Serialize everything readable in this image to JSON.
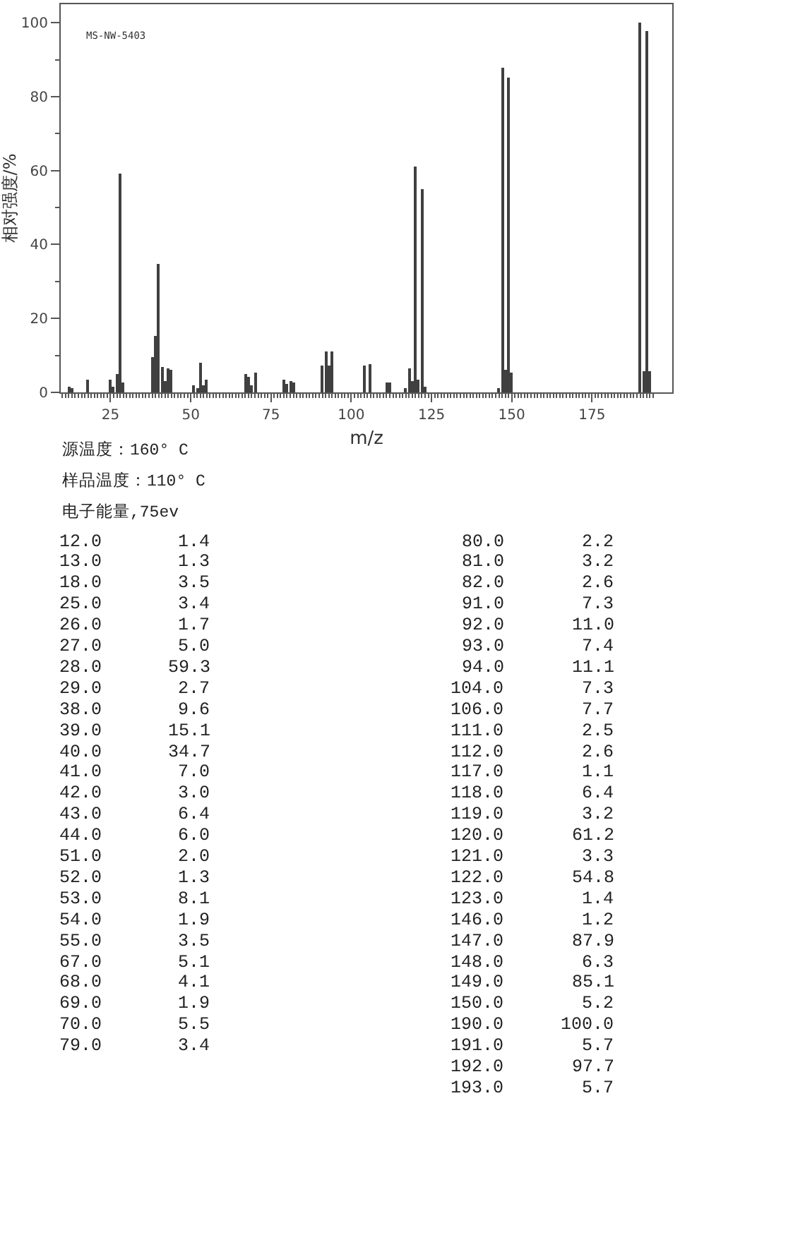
{
  "chart_data": {
    "type": "bar",
    "title": "MS-NW-5403",
    "xlabel": "m/z",
    "ylabel": "相对强度/%",
    "annotations": [
      "源温度：160° C",
      "样品温度：110° C",
      "电子能量,75ev",
      "12.0",
      "1.4",
      "13.0",
      "1.3",
      "18.0",
      "3.5",
      "25.0",
      "3.4",
      "26.0",
      "1.7",
      "27.0",
      "5.0",
      "28.0",
      "59.3",
      "29.0",
      "2.7",
      "38.0",
      "9.6",
      "39.0",
      "15.1",
      "40.0",
      "34.7",
      "41.0",
      "7.0",
      "42.0",
      "3.0",
      "43.0",
      "6.4",
      "44.0",
      "6.0",
      "51.0",
      "2.0",
      "52.0",
      "1.3",
      "53.0",
      "8.1",
      "54.0",
      "1.9",
      "55.0",
      "3.5",
      "67.0",
      "5.1",
      "68.0",
      "4.1",
      "69.0",
      "1.9",
      "70.0",
      "5.5",
      "79.0",
      "3.4",
      "80.0",
      "2.2",
      "81.0",
      "3.2",
      "82.0",
      "2.6",
      "91.0",
      "7.3",
      "92.0",
      "11.0",
      "93.0",
      "7.4",
      "94.0",
      "11.1",
      "104.0",
      "7.3",
      "106.0",
      "7.7",
      "111.0",
      "2.5",
      "112.0",
      "2.6",
      "117.0",
      "1.1",
      "118.0",
      "6.4",
      "119.0",
      "3.2",
      "120.0",
      "61.2",
      "121.0",
      "3.3",
      "122.0",
      "54.8",
      "123.0",
      "1.4",
      "146.0",
      "1.2",
      "147.0",
      "87.9",
      "148.0",
      "6.3",
      "149.0",
      "85.1",
      "150.0",
      "5.2",
      "190.0",
      "100.0",
      "191.0",
      "5.7",
      "192.0",
      "97.7",
      "193.0",
      "5.7"
    ],
    "x": [
      12,
      13,
      18,
      25,
      26,
      27,
      28,
      29,
      38,
      39,
      40,
      41,
      42,
      43,
      44,
      51,
      52,
      53,
      54,
      55,
      67,
      68,
      69,
      70,
      79,
      80,
      81,
      82,
      91,
      92,
      93,
      94,
      104,
      106,
      111,
      112,
      117,
      118,
      119,
      120,
      121,
      122,
      123,
      146,
      147,
      148,
      149,
      150,
      190,
      191,
      192,
      193
    ],
    "values": [
      1.4,
      1.3,
      3.5,
      3.4,
      1.7,
      5.0,
      59.3,
      2.7,
      9.6,
      15.1,
      34.7,
      7.0,
      3.0,
      6.4,
      6.0,
      2.0,
      1.3,
      8.1,
      1.9,
      3.5,
      5.1,
      4.1,
      1.9,
      5.5,
      3.4,
      2.2,
      3.2,
      2.6,
      7.3,
      11.0,
      7.4,
      11.1,
      7.3,
      7.7,
      2.5,
      2.6,
      1.1,
      6.4,
      3.2,
      61.2,
      3.3,
      54.8,
      1.4,
      1.2,
      87.9,
      6.3,
      85.1,
      5.2,
      100.0,
      5.7,
      97.7,
      5.7
    ],
    "color": "#404040",
    "xlim": [
      9.5,
      200
    ],
    "xticks": [
      {
        "value": 10,
        "label": null
      },
      {
        "value": 11,
        "label": null
      },
      {
        "value": 12,
        "label": null
      },
      {
        "value": 13,
        "label": null
      },
      {
        "value": 14,
        "label": null
      },
      {
        "value": 15,
        "label": null
      },
      {
        "value": 16,
        "label": null
      },
      {
        "value": 17,
        "label": null
      },
      {
        "value": 18,
        "label": null
      },
      {
        "value": 19,
        "label": null
      },
      {
        "value": 20,
        "label": null
      },
      {
        "value": 21,
        "label": null
      },
      {
        "value": 22,
        "label": null
      },
      {
        "value": 23,
        "label": null
      },
      {
        "value": 24,
        "label": null
      },
      25,
      {
        "value": 26,
        "label": null
      },
      {
        "value": 27,
        "label": null
      },
      {
        "value": 28,
        "label": null
      },
      {
        "value": 29,
        "label": null
      },
      {
        "value": 30,
        "label": null
      },
      {
        "value": 31,
        "label": null
      },
      {
        "value": 32,
        "label": null
      },
      {
        "value": 33,
        "label": null
      },
      {
        "value": 34,
        "label": null
      },
      {
        "value": 35,
        "label": null
      },
      {
        "value": 36,
        "label": null
      },
      {
        "value": 37,
        "label": null
      },
      {
        "value": 38,
        "label": null
      },
      {
        "value": 39,
        "label": null
      },
      {
        "value": 40,
        "label": null
      },
      {
        "value": 41,
        "label": null
      },
      {
        "value": 42,
        "label": null
      },
      {
        "value": 43,
        "label": null
      },
      {
        "value": 44,
        "label": null
      },
      {
        "value": 45,
        "label": null
      },
      {
        "value": 46,
        "label": null
      },
      {
        "value": 47,
        "label": null
      },
      {
        "value": 48,
        "label": null
      },
      {
        "value": 49,
        "label": null
      },
      50,
      {
        "value": 51,
        "label": null
      },
      {
        "value": 52,
        "label": null
      },
      {
        "value": 53,
        "label": null
      },
      {
        "value": 54,
        "label": null
      },
      {
        "value": 55,
        "label": null
      },
      {
        "value": 56,
        "label": null
      },
      {
        "value": 57,
        "label": null
      },
      {
        "value": 58,
        "label": null
      },
      {
        "value": 59,
        "label": null
      },
      {
        "value": 60,
        "label": null
      },
      {
        "value": 61,
        "label": null
      },
      {
        "value": 62,
        "label": null
      },
      {
        "value": 63,
        "label": null
      },
      {
        "value": 64,
        "label": null
      },
      {
        "value": 65,
        "label": null
      },
      {
        "value": 66,
        "label": null
      },
      {
        "value": 67,
        "label": null
      },
      {
        "value": 68,
        "label": null
      },
      {
        "value": 69,
        "label": null
      },
      {
        "value": 70,
        "label": null
      },
      {
        "value": 71,
        "label": null
      },
      {
        "value": 72,
        "label": null
      },
      {
        "value": 73,
        "label": null
      },
      {
        "value": 74,
        "label": null
      },
      75,
      {
        "value": 76,
        "label": null
      },
      {
        "value": 77,
        "label": null
      },
      {
        "value": 78,
        "label": null
      },
      {
        "value": 79,
        "label": null
      },
      {
        "value": 80,
        "label": null
      },
      {
        "value": 81,
        "label": null
      },
      {
        "value": 82,
        "label": null
      },
      {
        "value": 83,
        "label": null
      },
      {
        "value": 84,
        "label": null
      },
      {
        "value": 85,
        "label": null
      },
      {
        "value": 86,
        "label": null
      },
      {
        "value": 87,
        "label": null
      },
      {
        "value": 88,
        "label": null
      },
      {
        "value": 89,
        "label": null
      },
      {
        "value": 90,
        "label": null
      },
      {
        "value": 91,
        "label": null
      },
      {
        "value": 92,
        "label": null
      },
      {
        "value": 93,
        "label": null
      },
      {
        "value": 94,
        "label": null
      },
      {
        "value": 95,
        "label": null
      },
      {
        "value": 96,
        "label": null
      },
      {
        "value": 97,
        "label": null
      },
      {
        "value": 98,
        "label": null
      },
      {
        "value": 99,
        "label": null
      },
      100,
      {
        "value": 101,
        "label": null
      },
      {
        "value": 102,
        "label": null
      },
      {
        "value": 103,
        "label": null
      },
      {
        "value": 104,
        "label": null
      },
      {
        "value": 105,
        "label": null
      },
      {
        "value": 106,
        "label": null
      },
      {
        "value": 107,
        "label": null
      },
      {
        "value": 108,
        "label": null
      },
      {
        "value": 109,
        "label": null
      },
      {
        "value": 110,
        "label": null
      },
      {
        "value": 111,
        "label": null
      },
      {
        "value": 112,
        "label": null
      },
      {
        "value": 113,
        "label": null
      },
      {
        "value": 114,
        "label": null
      },
      {
        "value": 115,
        "label": null
      },
      {
        "value": 116,
        "label": null
      },
      {
        "value": 117,
        "label": null
      },
      {
        "value": 118,
        "label": null
      },
      {
        "value": 119,
        "label": null
      },
      {
        "value": 120,
        "label": null
      },
      {
        "value": 121,
        "label": null
      },
      {
        "value": 122,
        "label": null
      },
      {
        "value": 123,
        "label": null
      },
      {
        "value": 124,
        "label": null
      },
      125,
      {
        "value": 126,
        "label": null
      },
      {
        "value": 127,
        "label": null
      },
      {
        "value": 128,
        "label": null
      },
      {
        "value": 129,
        "label": null
      },
      {
        "value": 130,
        "label": null
      },
      {
        "value": 131,
        "label": null
      },
      {
        "value": 132,
        "label": null
      },
      {
        "value": 133,
        "label": null
      },
      {
        "value": 134,
        "label": null
      },
      {
        "value": 135,
        "label": null
      },
      {
        "value": 136,
        "label": null
      },
      {
        "value": 137,
        "label": null
      },
      {
        "value": 138,
        "label": null
      },
      {
        "value": 139,
        "label": null
      },
      {
        "value": 140,
        "label": null
      },
      {
        "value": 141,
        "label": null
      },
      {
        "value": 142,
        "label": null
      },
      {
        "value": 143,
        "label": null
      },
      {
        "value": 144,
        "label": null
      },
      {
        "value": 145,
        "label": null
      },
      {
        "value": 146,
        "label": null
      },
      {
        "value": 147,
        "label": null
      },
      {
        "value": 148,
        "label": null
      },
      {
        "value": 149,
        "label": null
      },
      150,
      {
        "value": 151,
        "label": null
      },
      {
        "value": 152,
        "label": null
      },
      {
        "value": 153,
        "label": null
      },
      {
        "value": 154,
        "label": null
      },
      {
        "value": 155,
        "label": null
      },
      {
        "value": 156,
        "label": null
      },
      {
        "value": 157,
        "label": null
      },
      {
        "value": 158,
        "label": null
      },
      {
        "value": 159,
        "label": null
      },
      {
        "value": 160,
        "label": null
      },
      {
        "value": 161,
        "label": null
      },
      {
        "value": 162,
        "label": null
      },
      {
        "value": 163,
        "label": null
      },
      {
        "value": 164,
        "label": null
      },
      {
        "value": 165,
        "label": null
      },
      {
        "value": 166,
        "label": null
      },
      {
        "value": 167,
        "label": null
      },
      {
        "value": 168,
        "label": null
      },
      {
        "value": 169,
        "label": null
      },
      {
        "value": 170,
        "label": null
      },
      {
        "value": 171,
        "label": null
      },
      {
        "value": 172,
        "label": null
      },
      {
        "value": 173,
        "label": null
      },
      {
        "value": 174,
        "label": null
      },
      175,
      {
        "value": 176,
        "label": null
      },
      {
        "value": 177,
        "label": null
      },
      {
        "value": 178,
        "label": null
      },
      {
        "value": 179,
        "label": null
      },
      {
        "value": 180,
        "label": null
      },
      {
        "value": 181,
        "label": null
      },
      {
        "value": 182,
        "label": null
      },
      {
        "value": 183,
        "label": null
      },
      {
        "value": 184,
        "label": null
      },
      {
        "value": 185,
        "label": null
      },
      {
        "value": 186,
        "label": null
      },
      {
        "value": 187,
        "label": null
      },
      {
        "value": 188,
        "label": null
      },
      {
        "value": 189,
        "label": null
      },
      {
        "value": 190,
        "label": null
      },
      {
        "value": 191,
        "label": null
      },
      {
        "value": 192,
        "label": null
      },
      {
        "value": 193,
        "label": null
      },
      {
        "value": 194,
        "label": null
      }
    ],
    "ylim": [
      0,
      105
    ],
    "yticks": [
      0,
      {
        "value": 10,
        "label": null
      },
      20,
      {
        "value": 30,
        "label": null
      },
      40,
      {
        "value": 50,
        "label": null
      },
      60,
      {
        "value": 70,
        "label": null
      },
      80,
      {
        "value": 90,
        "label": null
      },
      100
    ]
  }
}
